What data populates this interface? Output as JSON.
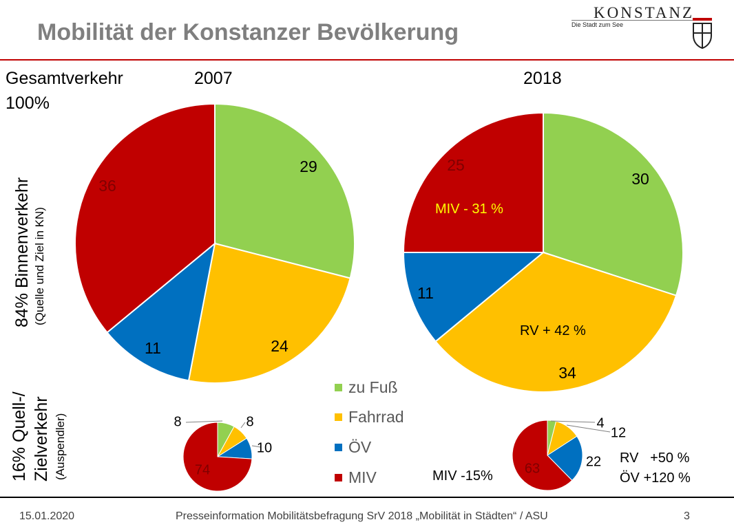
{
  "header": {
    "title": "Mobilität der Konstanzer Bevölkerung",
    "logo_name": "KONSTANZ",
    "logo_tagline": "Die Stadt zum See"
  },
  "labels": {
    "gesamt_line1": "Gesamtverkehr",
    "gesamt_line2": "100%",
    "binnen_main": "84% Binnenverkehr",
    "binnen_sub": "(Quelle und Ziel  in KN)",
    "quell_line1": "16% Quell-/",
    "quell_line2": "Zielverkehr",
    "quell_sub": "(Auspendler)",
    "year_2007": "2007",
    "year_2018": "2018"
  },
  "legend": [
    {
      "label": "zu Fuß",
      "color": "#92d050"
    },
    {
      "label": "Fahrrad",
      "color": "#ffc000"
    },
    {
      "label": "ÖV",
      "color": "#0070c0"
    },
    {
      "label": "MIV",
      "color": "#c00000"
    }
  ],
  "annotations": {
    "miv_2018_binnen": "MIV - 31 %",
    "rv_2018_binnen": "RV + 42 %",
    "miv_2018_quell": "MIV -15%",
    "rv_2018_quell": "RV   +50 %",
    "oev_2018_quell": "ÖV +120 %"
  },
  "chart_data": [
    {
      "type": "pie",
      "title": "2007",
      "subset": "84% Binnenverkehr",
      "categories": [
        "zu Fuß",
        "Fahrrad",
        "ÖV",
        "MIV"
      ],
      "values": [
        29,
        24,
        11,
        36
      ],
      "colors": [
        "#92d050",
        "#ffc000",
        "#0070c0",
        "#c00000"
      ]
    },
    {
      "type": "pie",
      "title": "2018",
      "subset": "84% Binnenverkehr",
      "categories": [
        "zu Fuß",
        "Fahrrad",
        "ÖV",
        "MIV"
      ],
      "values": [
        30,
        34,
        11,
        25
      ],
      "colors": [
        "#92d050",
        "#ffc000",
        "#0070c0",
        "#c00000"
      ]
    },
    {
      "type": "pie",
      "title": "2007",
      "subset": "16% Quell-/Zielverkehr",
      "categories": [
        "zu Fuß",
        "Fahrrad",
        "ÖV",
        "MIV"
      ],
      "values": [
        8,
        8,
        10,
        74
      ],
      "colors": [
        "#92d050",
        "#ffc000",
        "#0070c0",
        "#c00000"
      ]
    },
    {
      "type": "pie",
      "title": "2018",
      "subset": "16% Quell-/Zielverkehr",
      "categories": [
        "zu Fuß",
        "Fahrrad",
        "ÖV",
        "MIV"
      ],
      "values": [
        4,
        12,
        22,
        63
      ],
      "colors": [
        "#92d050",
        "#ffc000",
        "#0070c0",
        "#c00000"
      ]
    }
  ],
  "footer": {
    "date": "15.01.2020",
    "text": "Presseinformation Mobilitätsbefragung SrV 2018 „Mobilität in Städten“ / ASU",
    "page": "3"
  }
}
